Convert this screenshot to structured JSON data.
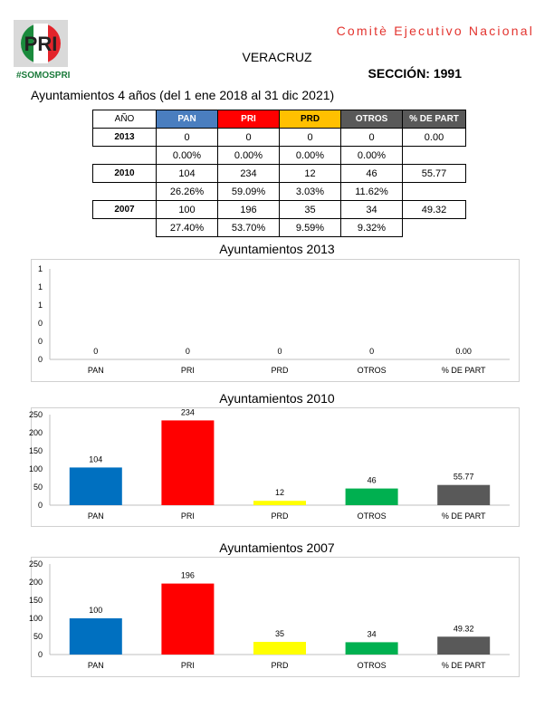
{
  "header": {
    "logo_text": "PRI",
    "hashtag": "#SOMOSPRI",
    "committee": "Comitè Ejecutivo Nacional",
    "state": "VERACRUZ",
    "section": "SECCIÓN: 1991",
    "subtitle": "Ayuntamientos 4 años (del 1 ene 2018 al 31 dic 2021)"
  },
  "table": {
    "headers": [
      "AÑO",
      "PAN",
      "PRI",
      "PRD",
      "OTROS",
      "% DE PART"
    ],
    "header_colors": {
      "PAN": "#4a7ebf",
      "PRI": "#ff0000",
      "PRD": "#ffc000",
      "OTROS": "#595959",
      "PART": "#595959"
    },
    "rows": [
      {
        "year": "2013",
        "values": [
          "0",
          "0",
          "0",
          "0"
        ],
        "part": "0.00",
        "pct": [
          "0.00%",
          "0.00%",
          "0.00%",
          "0.00%"
        ]
      },
      {
        "year": "2010",
        "values": [
          "104",
          "234",
          "12",
          "46"
        ],
        "part": "55.77",
        "pct": [
          "26.26%",
          "59.09%",
          "3.03%",
          "11.62%"
        ]
      },
      {
        "year": "2007",
        "values": [
          "100",
          "196",
          "35",
          "34"
        ],
        "part": "49.32",
        "pct": [
          "27.40%",
          "53.70%",
          "9.59%",
          "9.32%"
        ]
      }
    ]
  },
  "chart_data": [
    {
      "type": "bar",
      "title": "Ayuntamientos  2013",
      "categories": [
        "PAN",
        "PRI",
        "PRD",
        "OTROS",
        "% DE PART"
      ],
      "values": [
        0,
        0,
        0,
        0,
        0.0
      ],
      "value_labels": [
        "0",
        "0",
        "0",
        "0",
        "0.00"
      ],
      "yticks": [
        "1",
        "1",
        "1",
        "0",
        "0",
        "0"
      ],
      "ylim": [
        0,
        1
      ],
      "colors": [
        "#0070c0",
        "#ff0000",
        "#ffff00",
        "#00b050",
        "#595959"
      ]
    },
    {
      "type": "bar",
      "title": "Ayuntamientos 2010",
      "categories": [
        "PAN",
        "PRI",
        "PRD",
        "OTROS",
        "% DE PART"
      ],
      "values": [
        104,
        234,
        12,
        46,
        55.77
      ],
      "value_labels": [
        "104",
        "234",
        "12",
        "46",
        "55.77"
      ],
      "yticks": [
        "250",
        "200",
        "150",
        "100",
        "50",
        "0"
      ],
      "ylim": [
        0,
        250
      ],
      "colors": [
        "#0070c0",
        "#ff0000",
        "#ffff00",
        "#00b050",
        "#595959"
      ]
    },
    {
      "type": "bar",
      "title": "Ayuntamientos 2007",
      "categories": [
        "PAN",
        "PRI",
        "PRD",
        "OTROS",
        "% DE PART"
      ],
      "values": [
        100,
        196,
        35,
        34,
        49.32
      ],
      "value_labels": [
        "100",
        "196",
        "35",
        "34",
        "49.32"
      ],
      "yticks": [
        "250",
        "200",
        "150",
        "100",
        "50",
        "0"
      ],
      "ylim": [
        0,
        250
      ],
      "colors": [
        "#0070c0",
        "#ff0000",
        "#ffff00",
        "#00b050",
        "#595959"
      ]
    }
  ]
}
